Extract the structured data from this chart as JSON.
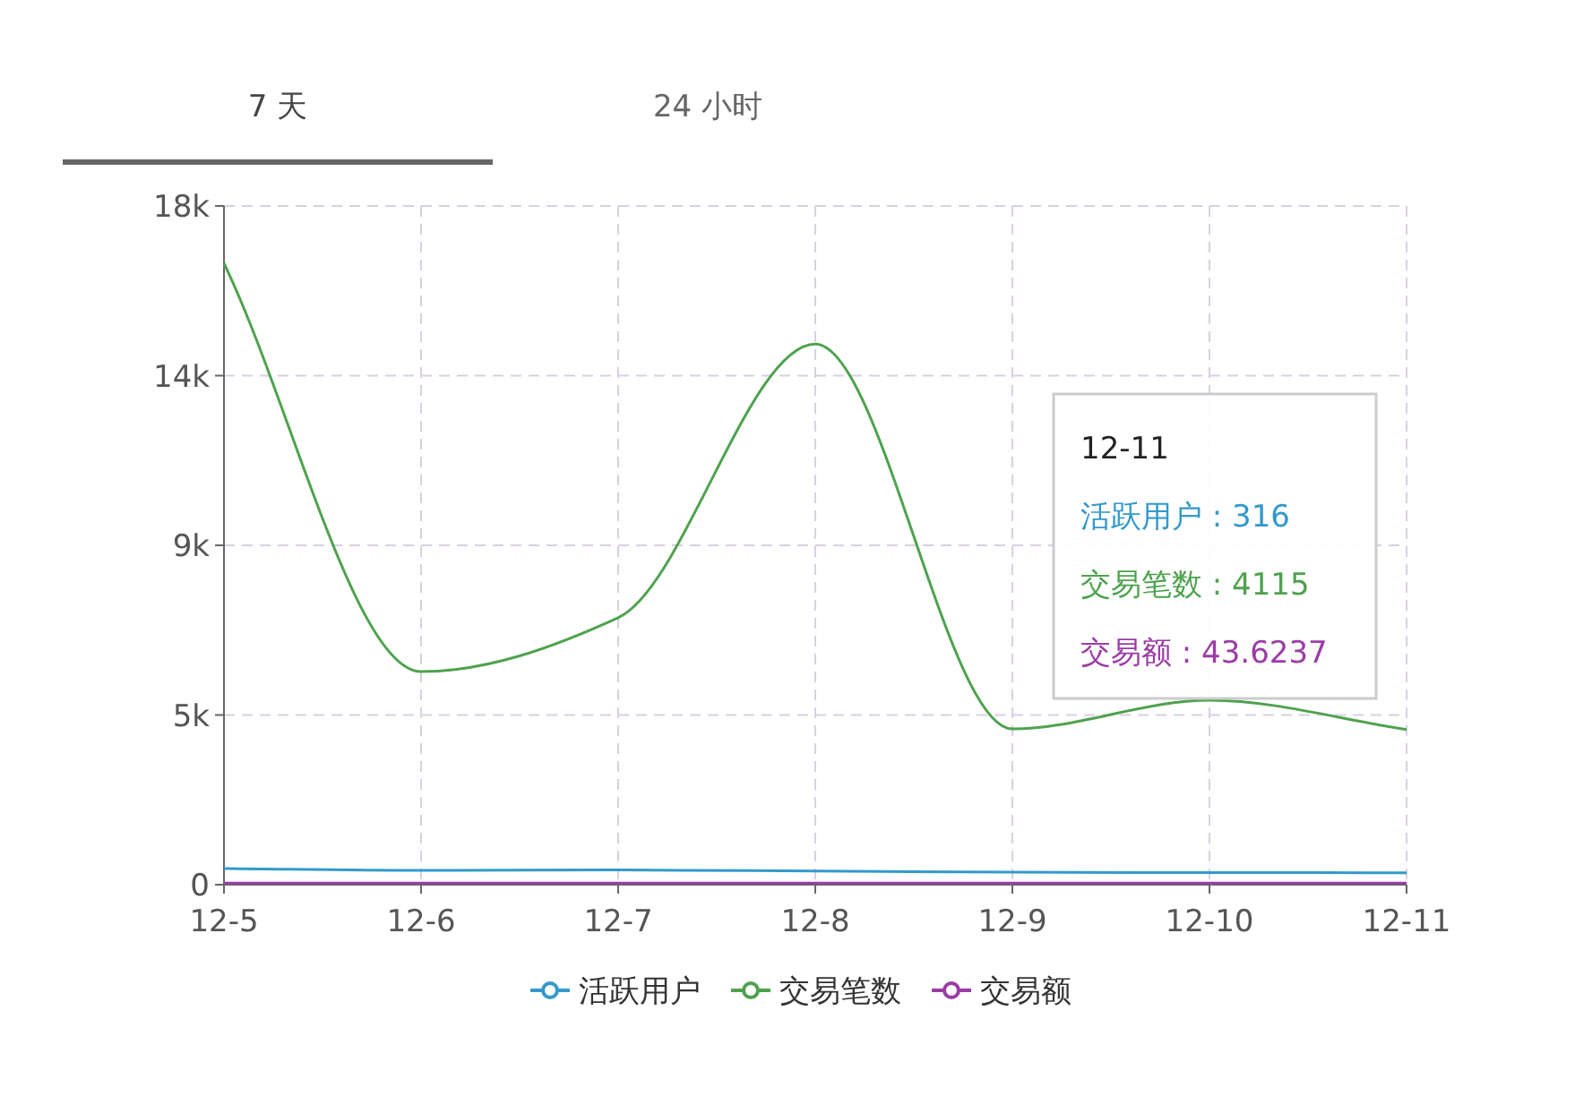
{
  "chart_data": {
    "type": "line",
    "categories": [
      "12-5",
      "12-6",
      "12-7",
      "12-8",
      "12-9",
      "12-10",
      "12-11"
    ],
    "series": [
      {
        "name": "活跃用户",
        "color": "#3399cc",
        "values": [
          430,
          380,
          390,
          360,
          330,
          320,
          316
        ]
      },
      {
        "name": "交易笔数",
        "color": "#4ea24e",
        "values": [
          16480,
          5650,
          7080,
          14340,
          4130,
          4890,
          4115
        ]
      },
      {
        "name": "交易额",
        "color": "#9b3ca6",
        "values": [
          40,
          40,
          40,
          40,
          40,
          40,
          43.6237
        ]
      }
    ],
    "ylim": [
      0,
      18000
    ],
    "yticks": [
      0,
      {
        "value": 4500,
        "label": "5k"
      },
      {
        "value": 9000,
        "label": "9k"
      },
      {
        "value": 13500,
        "label": "14k"
      },
      {
        "value": 18000,
        "label": "18k"
      }
    ],
    "grid": true,
    "legend": "bottom",
    "marker": "none",
    "line_style": "solid",
    "annotations": [
      "7 天",
      "24 小时",
      "12-11",
      "活跃用户 : 316",
      "交易笔数 : 4115",
      "交易额 : 43.6237"
    ]
  }
}
